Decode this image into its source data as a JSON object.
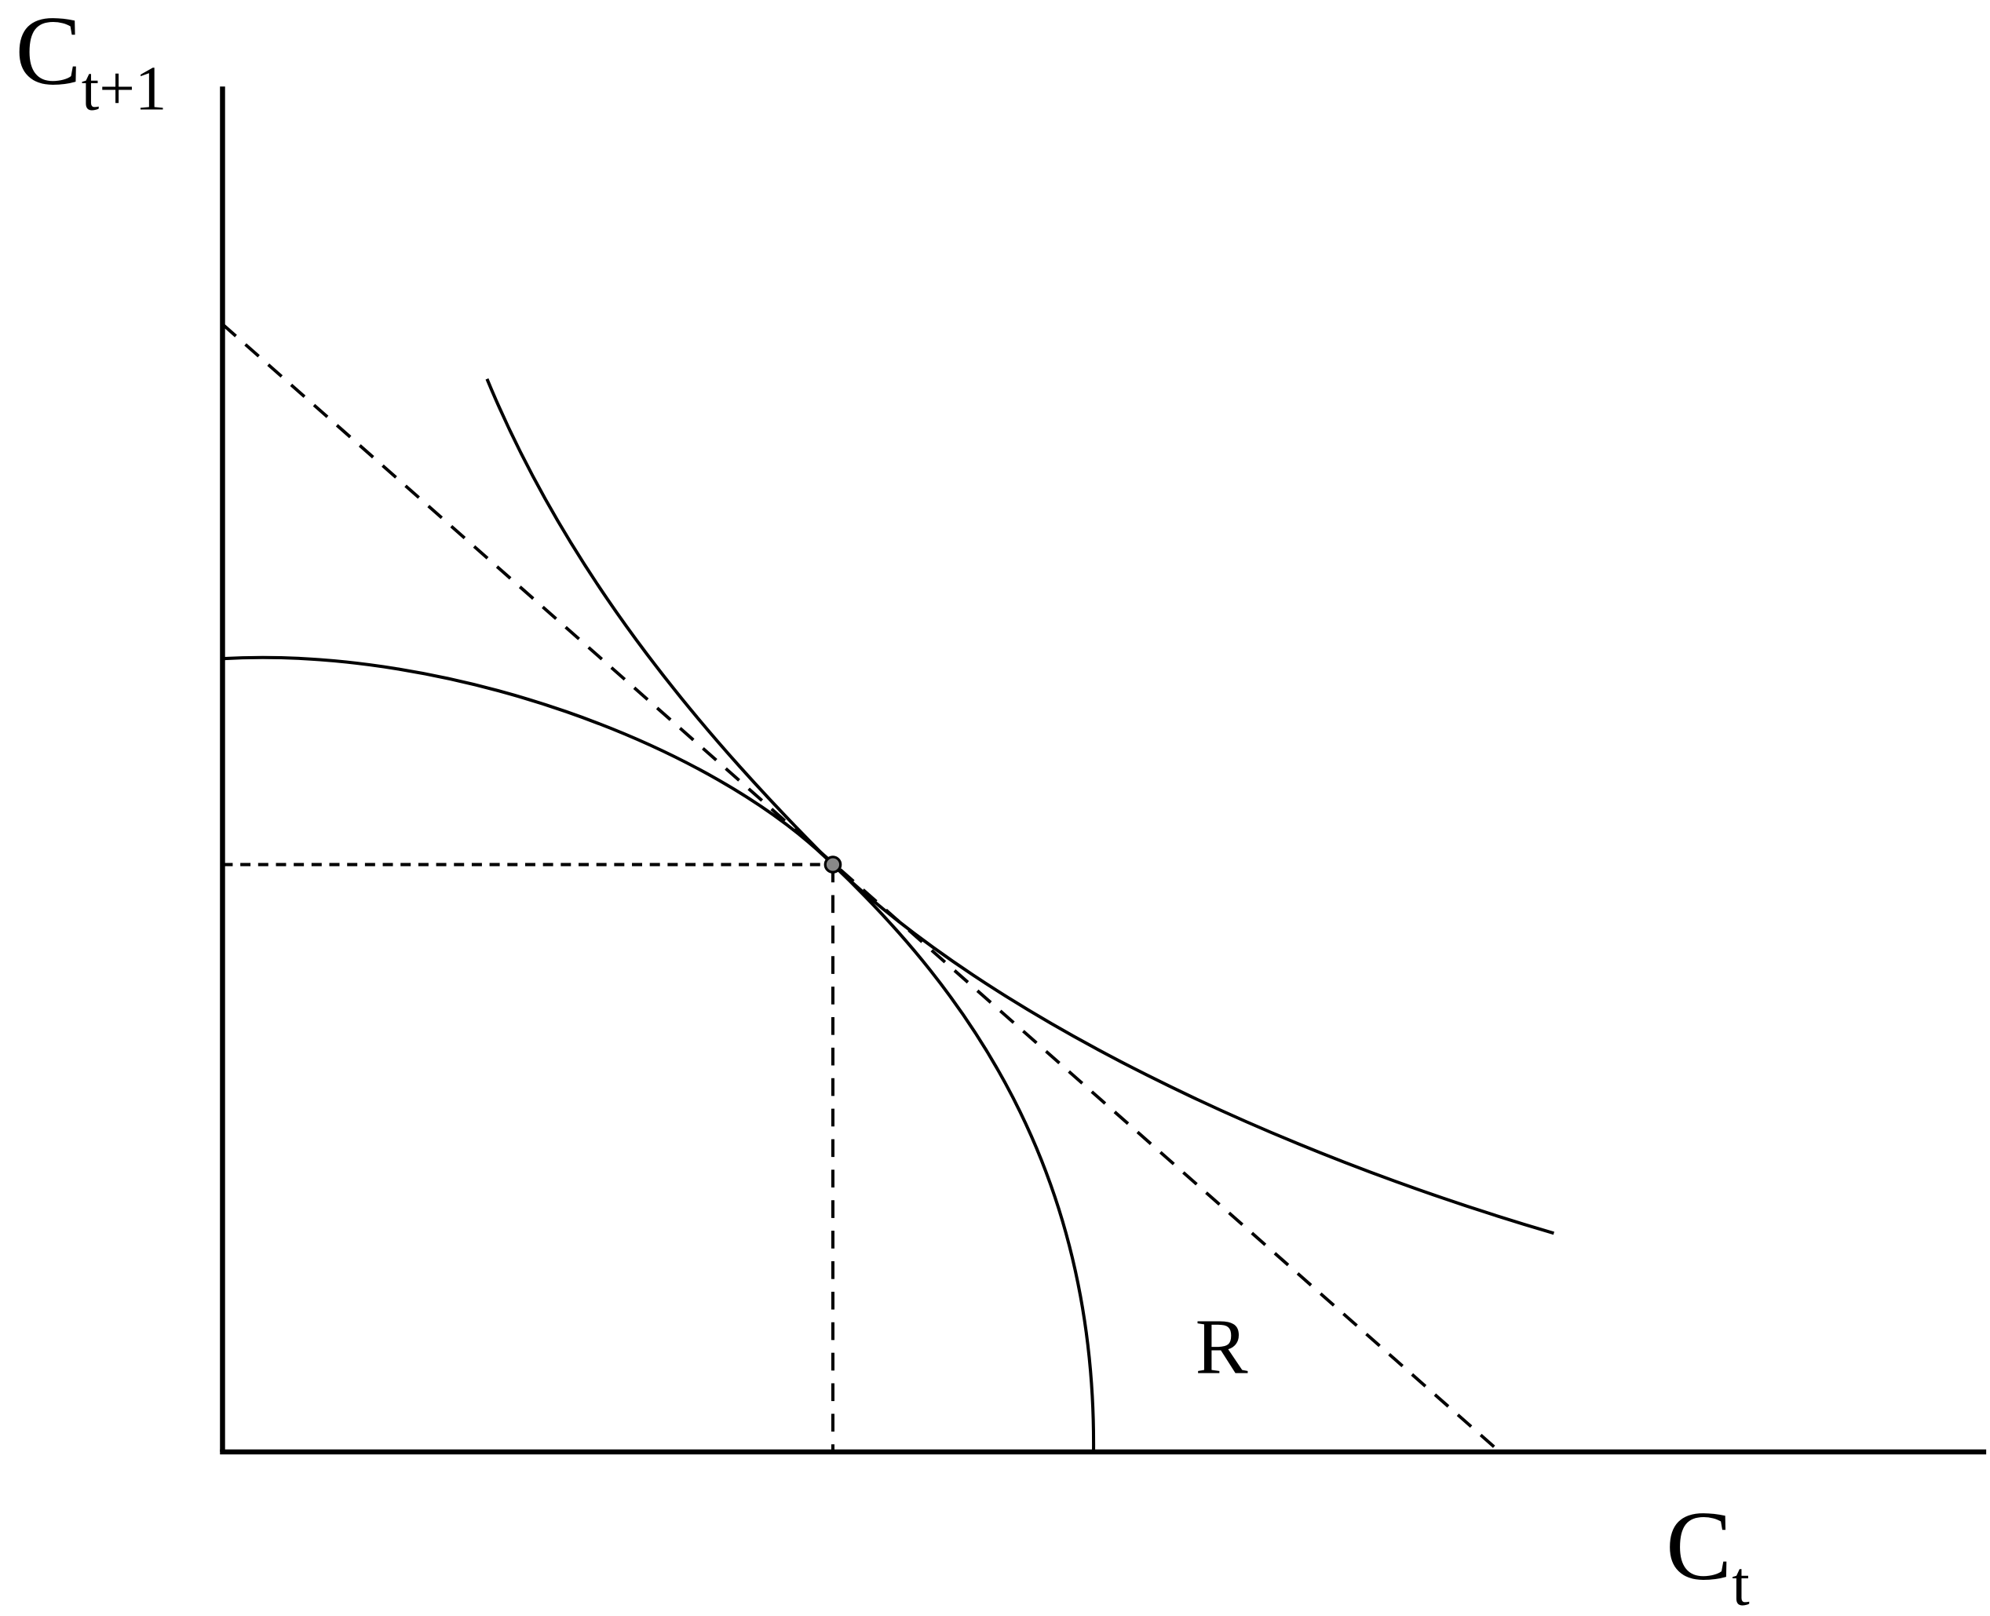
{
  "y_axis_label": {
    "main": "C",
    "sub": "t+1"
  },
  "x_axis_label": {
    "main": "C",
    "sub": "t"
  },
  "region_label": "R"
}
